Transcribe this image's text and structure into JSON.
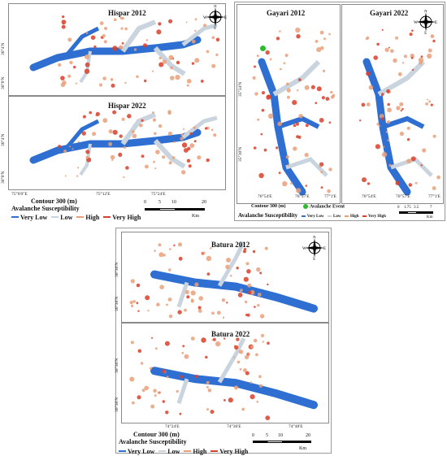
{
  "colors": {
    "very_low": "#2e6fd1",
    "low": "#c9d4de",
    "high": "#e9a07a",
    "very_high": "#d9402b",
    "event": "#2dbb2d"
  },
  "legend": {
    "contour_label": "Contour 300 (m)",
    "susceptibility_label": "Avalanche  Susceptibility",
    "event_label": "Avalanche Event",
    "classes": [
      "Very Low",
      "Low",
      "High",
      "Very High"
    ]
  },
  "compass": {
    "n": "N",
    "s": "S",
    "e": "E",
    "w": "W"
  },
  "hispar": {
    "title_2012": "Hispar 2012",
    "title_2022": "Hispar 2022",
    "lat_ticks_top": [
      "36°4'N",
      "36°0'N"
    ],
    "lat_ticks_bottom": [
      "36°4'N",
      "36°0'N"
    ],
    "lon_ticks": [
      "75°0'0\"E",
      "75°12'E",
      "75°24'E"
    ],
    "scale_labels": [
      "0",
      "5",
      "10",
      "20"
    ],
    "scale_unit": "Km",
    "contours": [
      "4000",
      "5100",
      "5700",
      "6000",
      "6400",
      "4800",
      "5400"
    ]
  },
  "gayari": {
    "title_2012": "Gayari 2012",
    "title_2022": "Gayari 2022",
    "lat_ticks": [
      "35°34'N",
      "35°30'N"
    ],
    "lon_ticks": [
      "76°54'E",
      "76°57'E",
      "77°1'E",
      "76°54'E",
      "76°57'E",
      "77°1'E"
    ],
    "scale_labels": [
      "0",
      "1.75",
      "3.5",
      "7"
    ],
    "scale_unit": "Km",
    "contours": [
      "6000",
      "5400",
      "5100",
      "4800",
      "5700",
      "6300"
    ]
  },
  "batura": {
    "title_2012": "Batura 2012",
    "title_2022": "Batura 2022",
    "lat_ticks_top": [
      "36°36'N",
      "36°30'N"
    ],
    "lat_ticks_bottom": [
      "36°36'N",
      "36°30'N"
    ],
    "lon_ticks": [
      "74°24'E",
      "74°36'E",
      "74°48'E"
    ],
    "scale_labels": [
      "0",
      "5",
      "10",
      "20"
    ],
    "scale_unit": "Km",
    "contours": [
      "4800",
      "5100",
      "5400",
      "6000",
      "6400",
      "4200"
    ]
  }
}
